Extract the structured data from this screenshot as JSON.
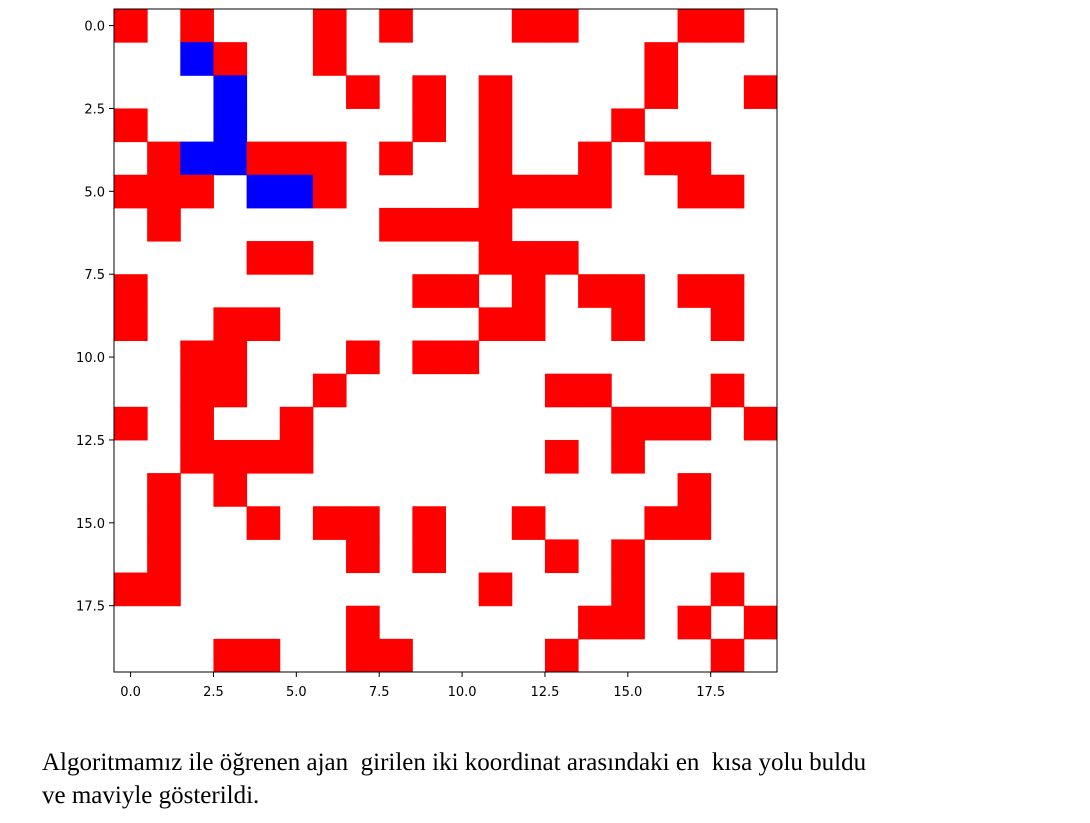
{
  "chart_data": {
    "type": "heatmap",
    "title": "",
    "xlabel": "",
    "ylabel": "",
    "rows": 20,
    "cols": 20,
    "x_ticks": [
      "0.0",
      "2.5",
      "5.0",
      "7.5",
      "10.0",
      "12.5",
      "15.0",
      "17.5"
    ],
    "y_ticks": [
      "0.0",
      "2.5",
      "5.0",
      "7.5",
      "10.0",
      "12.5",
      "15.0",
      "17.5"
    ],
    "tick_values": [
      0,
      2.5,
      5,
      7.5,
      10,
      12.5,
      15,
      17.5
    ],
    "xlim": [
      -0.5,
      19.5
    ],
    "ylim": [
      19.5,
      -0.5
    ],
    "colors": {
      "empty": "#ffffff",
      "obstacle": "#ff0000",
      "path": "#0000ff"
    },
    "grid_legend": {
      "0": "empty",
      "1": "obstacle",
      "2": "path"
    },
    "grid": [
      [
        1,
        0,
        1,
        0,
        0,
        0,
        1,
        0,
        1,
        0,
        0,
        0,
        1,
        1,
        0,
        0,
        0,
        1,
        1,
        0
      ],
      [
        0,
        0,
        2,
        1,
        0,
        0,
        1,
        0,
        0,
        0,
        0,
        0,
        0,
        0,
        0,
        0,
        1,
        0,
        0,
        0
      ],
      [
        0,
        0,
        0,
        2,
        0,
        0,
        0,
        1,
        0,
        1,
        0,
        1,
        0,
        0,
        0,
        0,
        1,
        0,
        0,
        1
      ],
      [
        1,
        0,
        0,
        2,
        0,
        0,
        0,
        0,
        0,
        1,
        0,
        1,
        0,
        0,
        0,
        1,
        0,
        0,
        0,
        0
      ],
      [
        0,
        1,
        2,
        2,
        1,
        1,
        1,
        0,
        1,
        0,
        0,
        1,
        0,
        0,
        1,
        0,
        1,
        1,
        0,
        0
      ],
      [
        1,
        1,
        1,
        0,
        2,
        2,
        1,
        0,
        0,
        0,
        0,
        1,
        1,
        1,
        1,
        0,
        0,
        1,
        1,
        0
      ],
      [
        0,
        1,
        0,
        0,
        0,
        0,
        0,
        0,
        1,
        1,
        1,
        1,
        0,
        0,
        0,
        0,
        0,
        0,
        0,
        0
      ],
      [
        0,
        0,
        0,
        0,
        1,
        1,
        0,
        0,
        0,
        0,
        0,
        1,
        1,
        1,
        0,
        0,
        0,
        0,
        0,
        0
      ],
      [
        1,
        0,
        0,
        0,
        0,
        0,
        0,
        0,
        0,
        1,
        1,
        0,
        1,
        0,
        1,
        1,
        0,
        1,
        1,
        0
      ],
      [
        1,
        0,
        0,
        1,
        1,
        0,
        0,
        0,
        0,
        0,
        0,
        1,
        1,
        0,
        0,
        1,
        0,
        0,
        1,
        0
      ],
      [
        0,
        0,
        1,
        1,
        0,
        0,
        0,
        1,
        0,
        1,
        1,
        0,
        0,
        0,
        0,
        0,
        0,
        0,
        0,
        0
      ],
      [
        0,
        0,
        1,
        1,
        0,
        0,
        1,
        0,
        0,
        0,
        0,
        0,
        0,
        1,
        1,
        0,
        0,
        0,
        1,
        0
      ],
      [
        1,
        0,
        1,
        0,
        0,
        1,
        0,
        0,
        0,
        0,
        0,
        0,
        0,
        0,
        0,
        1,
        1,
        1,
        0,
        1
      ],
      [
        0,
        0,
        1,
        1,
        1,
        1,
        0,
        0,
        0,
        0,
        0,
        0,
        0,
        1,
        0,
        1,
        0,
        0,
        0,
        0
      ],
      [
        0,
        1,
        0,
        1,
        0,
        0,
        0,
        0,
        0,
        0,
        0,
        0,
        0,
        0,
        0,
        0,
        0,
        1,
        0,
        0
      ],
      [
        0,
        1,
        0,
        0,
        1,
        0,
        1,
        1,
        0,
        1,
        0,
        0,
        1,
        0,
        0,
        0,
        1,
        1,
        0,
        0
      ],
      [
        0,
        1,
        0,
        0,
        0,
        0,
        0,
        1,
        0,
        1,
        0,
        0,
        0,
        1,
        0,
        1,
        0,
        0,
        0,
        0
      ],
      [
        1,
        1,
        0,
        0,
        0,
        0,
        0,
        0,
        0,
        0,
        0,
        1,
        0,
        0,
        0,
        1,
        0,
        0,
        1,
        0
      ],
      [
        0,
        0,
        0,
        0,
        0,
        0,
        0,
        1,
        0,
        0,
        0,
        0,
        0,
        0,
        1,
        1,
        0,
        1,
        0,
        1
      ],
      [
        0,
        0,
        0,
        1,
        1,
        0,
        0,
        1,
        1,
        0,
        0,
        0,
        0,
        1,
        0,
        0,
        0,
        0,
        1,
        0
      ]
    ]
  },
  "caption": {
    "line1": "Algoritmamız ile öğrenen ajan  girilen iki koordinat arasındaki en  kısa yolu buldu",
    "line2": "ve maviyle gösterildi."
  }
}
